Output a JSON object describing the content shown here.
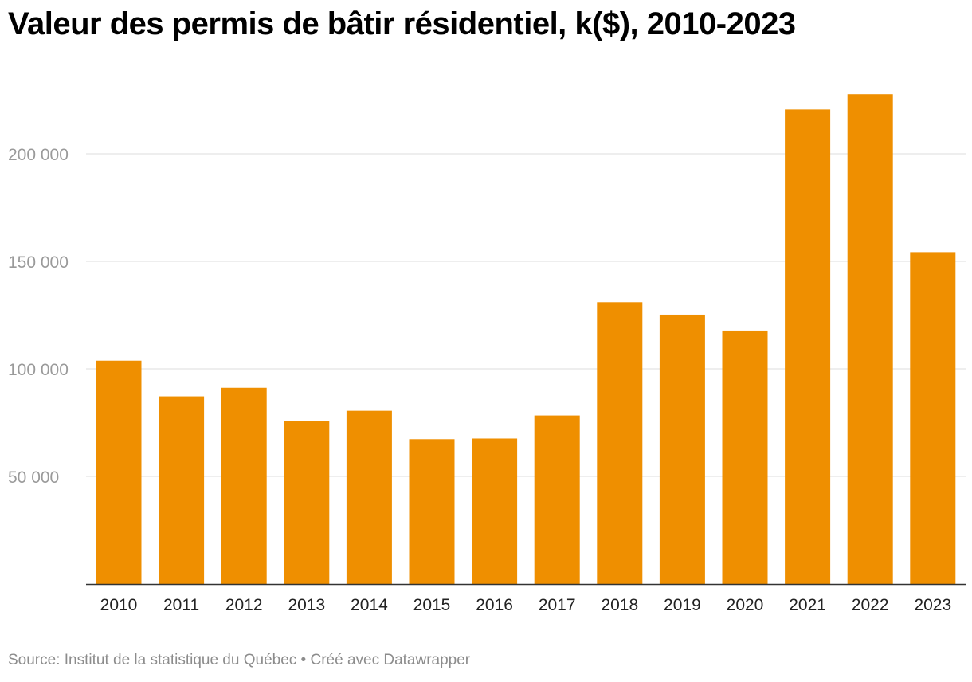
{
  "chart_data": {
    "type": "bar",
    "title": "Valeur des permis de bâtir résidentiel, k($), 2010-2023",
    "xlabel": "",
    "ylabel": "",
    "categories": [
      "2010",
      "2011",
      "2012",
      "2013",
      "2014",
      "2015",
      "2016",
      "2017",
      "2018",
      "2019",
      "2020",
      "2021",
      "2022",
      "2023"
    ],
    "values": [
      103800,
      87200,
      91200,
      75800,
      80500,
      67300,
      67600,
      78300,
      131000,
      125200,
      117800,
      220600,
      227700,
      154300
    ],
    "ylim": [
      0,
      230000
    ],
    "yticks": [
      50000,
      100000,
      150000,
      200000
    ],
    "ytick_labels": [
      "50 000",
      "100 000",
      "150 000",
      "200 000"
    ],
    "bar_color": "#ef8f00",
    "grid": true,
    "legend": "none"
  },
  "footer": {
    "source": "Source: Institut de la statistique du Québec • Créé avec Datawrapper"
  }
}
